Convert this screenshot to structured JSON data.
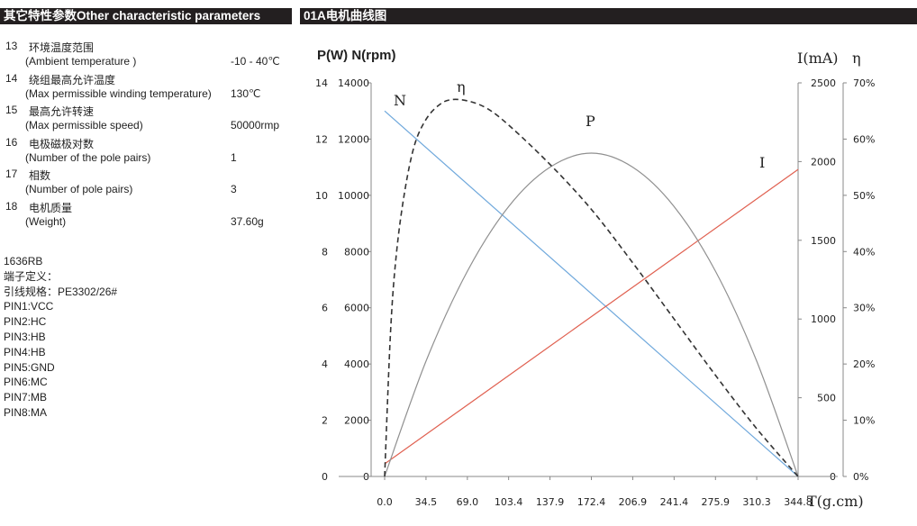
{
  "headers": {
    "left": "其它特性参数Other characteristic parameters",
    "right": "01A电机曲线图"
  },
  "params": [
    {
      "num": "13",
      "cn": "环境温度范围",
      "en": "(Ambient  temperature )",
      "value": "-10 - 40℃"
    },
    {
      "num": "14",
      "cn": "绕组最高允许温度",
      "en": "(Max permissible winding temperature)",
      "value": "130℃"
    },
    {
      "num": "15",
      "cn": "最高允许转速",
      "en": "(Max permissible speed)",
      "value": "50000rmp"
    },
    {
      "num": "16",
      "cn": "电极磁极对数",
      "en": "(Number of  the pole pairs)",
      "value": "1"
    },
    {
      "num": "17",
      "cn": "相数",
      "en": "(Number of pole pairs)",
      "value": "3"
    },
    {
      "num": "18",
      "cn": "电机质量",
      "en": "(Weight)",
      "value": "37.60g"
    }
  ],
  "info_lines": [
    "1636RB",
    "端子定义：",
    "引线规格：PE3302/26#",
    "PIN1:VCC",
    "PIN2:HC",
    "PIN3:HB",
    "PIN4:HB",
    "PIN5:GND",
    "PIN6:MC",
    "PIN7:MB",
    "PIN8:MA"
  ],
  "chart_data": {
    "type": "line",
    "y_title_left": "P(W) N(rpm)",
    "y_title_current": "I(mA)",
    "y_title_eff": "η",
    "xlabel": "T(g.cm)",
    "x_ticks": [
      "0.0",
      "34.5",
      "69.0",
      "103.4",
      "137.9",
      "172.4",
      "206.9",
      "241.4",
      "275.9",
      "310.3",
      "344.8"
    ],
    "xlim": [
      0,
      344.8
    ],
    "axes": {
      "power": {
        "ticks": [
          "0",
          "2",
          "4",
          "6",
          "8",
          "10",
          "12",
          "14"
        ],
        "range": [
          0,
          14
        ]
      },
      "speed": {
        "ticks": [
          "0",
          "2000",
          "4000",
          "6000",
          "8000",
          "10000",
          "12000",
          "14000"
        ],
        "range": [
          0,
          14000
        ]
      },
      "current": {
        "ticks": [
          "0",
          "500",
          "1000",
          "1500",
          "2000",
          "2500"
        ],
        "range": [
          0,
          2500
        ]
      },
      "efficiency": {
        "ticks": [
          "0%",
          "10%",
          "20%",
          "30%",
          "40%",
          "50%",
          "60%",
          "70%"
        ],
        "range": [
          0,
          70
        ]
      }
    },
    "series": [
      {
        "name": "N",
        "axis": "speed",
        "color": "#6fa8dc",
        "x": [
          0,
          344.8
        ],
        "y": [
          13000,
          0
        ]
      },
      {
        "name": "I",
        "axis": "current",
        "color": "#e06050",
        "x": [
          0,
          344.8
        ],
        "y": [
          80,
          1950
        ]
      },
      {
        "name": "P",
        "axis": "power",
        "color": "#909090",
        "x": [
          0,
          34.5,
          69.0,
          103.4,
          137.9,
          172.4,
          206.9,
          241.4,
          275.9,
          310.3,
          344.8
        ],
        "y": [
          0,
          4.1,
          7.3,
          9.6,
          11.0,
          11.5,
          11.0,
          9.6,
          7.3,
          4.1,
          0
        ]
      },
      {
        "name": "η",
        "axis": "efficiency",
        "color": "#333333",
        "dashed": true,
        "x": [
          0,
          5,
          10,
          17,
          25,
          34.5,
          45,
          55,
          69.0,
          85,
          103.4,
          137.9,
          172.4,
          206.9,
          241.4,
          275.9,
          310.3,
          344.8
        ],
        "y": [
          0,
          26,
          40,
          51,
          59,
          63.5,
          66,
          67,
          66.8,
          65.5,
          62.5,
          55.5,
          47.5,
          38,
          28,
          18,
          8.5,
          0
        ]
      }
    ]
  }
}
